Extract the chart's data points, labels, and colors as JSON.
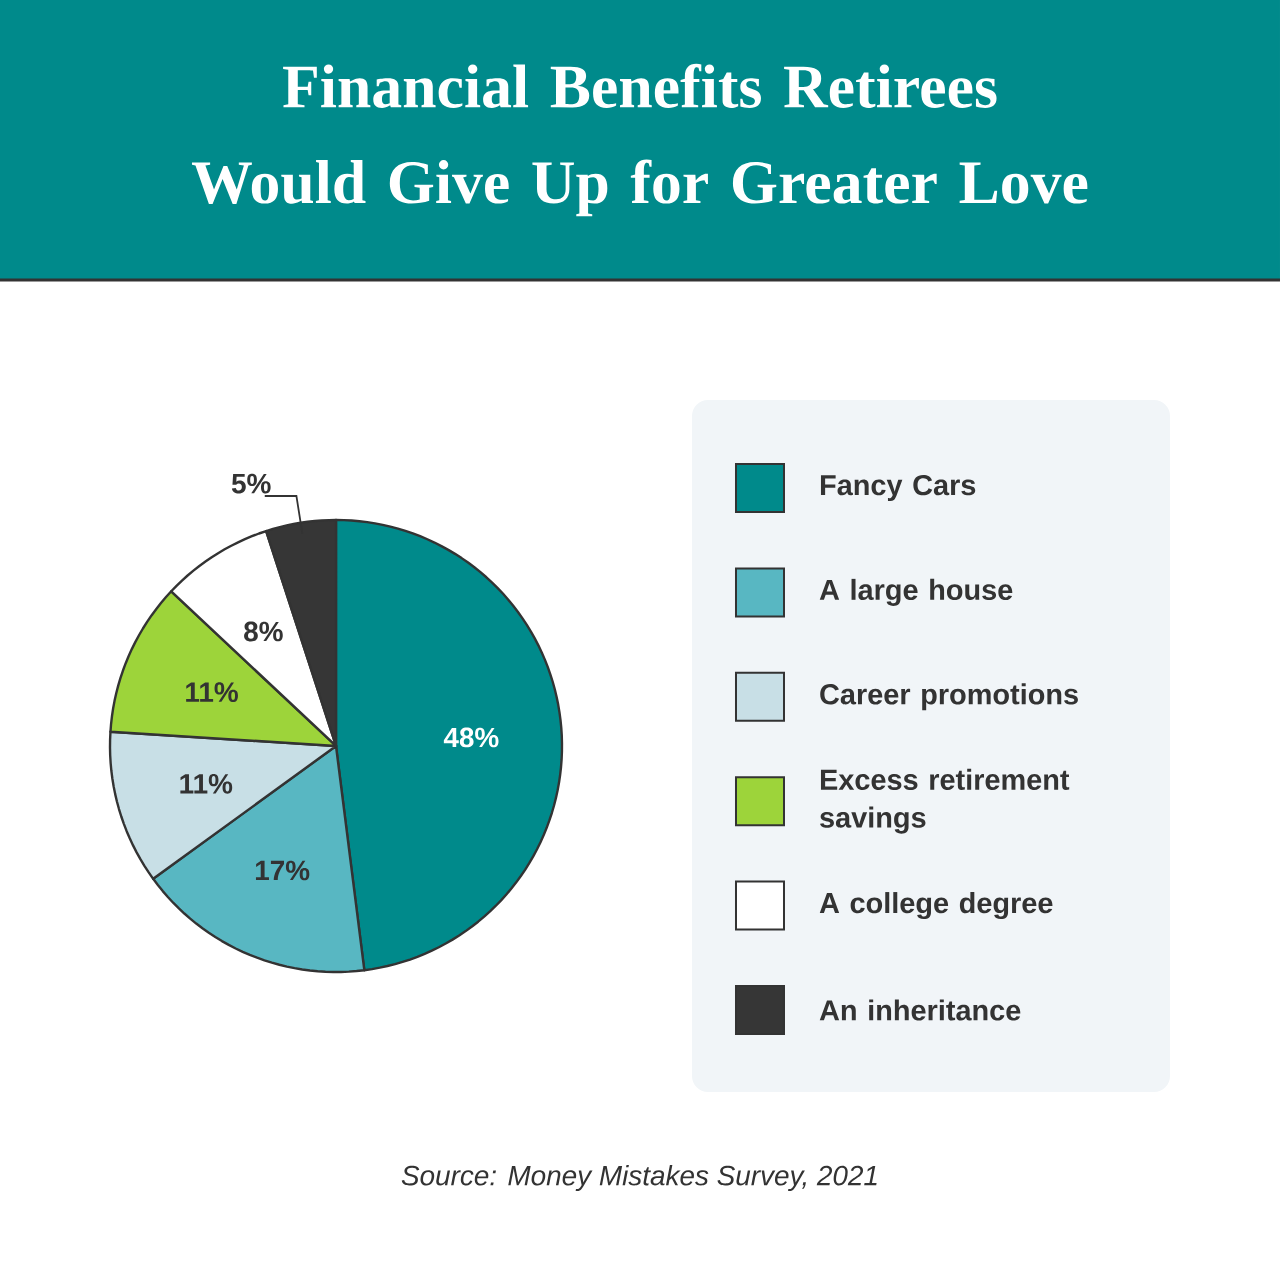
{
  "chart_data": {
    "type": "pie",
    "title": "Financial Benefits Retirees Would Give Up for Greater Love",
    "categories": [
      "Fancy Cars",
      "A large house",
      "Career promotions",
      "Excess retirement savings",
      "A college degree",
      "An inheritance"
    ],
    "values": [
      48,
      17,
      11,
      11,
      8,
      5
    ],
    "value_labels": [
      "48%",
      "17%",
      "11%",
      "11%",
      "8%",
      "5%"
    ],
    "colors": [
      "#008a8b",
      "#58b7c2",
      "#c8dfe6",
      "#9dd43a",
      "#ffffff",
      "#363636"
    ],
    "legend": "right",
    "annotations": [
      "Source: Money Mistakes Survey, 2021"
    ]
  }
}
